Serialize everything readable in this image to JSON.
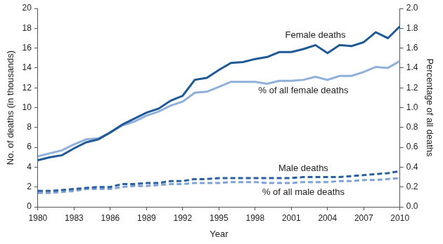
{
  "chart_data": {
    "type": "line",
    "x_label": "Year",
    "y_label": "No. of deaths (in thousands)",
    "y2_label": "Percentage of all deaths",
    "x": [
      1980,
      1981,
      1982,
      1983,
      1984,
      1985,
      1986,
      1987,
      1988,
      1989,
      1990,
      1991,
      1992,
      1993,
      1994,
      1995,
      1996,
      1997,
      1998,
      1999,
      2000,
      2001,
      2002,
      2003,
      2004,
      2005,
      2006,
      2007,
      2008,
      2009,
      2010
    ],
    "xlim": [
      1980,
      2010
    ],
    "xticks": [
      1980,
      1983,
      1986,
      1989,
      1992,
      1995,
      1998,
      2001,
      2004,
      2007,
      2010
    ],
    "ylim": [
      0,
      20
    ],
    "yticks": [
      0,
      2,
      4,
      6,
      8,
      10,
      12,
      14,
      16,
      18,
      20
    ],
    "y2lim": [
      0,
      2.0
    ],
    "y2ticks": [
      {
        "value": 0,
        "label": "0.0"
      },
      0.2,
      0.4,
      0.6,
      0.8,
      {
        "value": 1,
        "label": "1.0"
      },
      1.2,
      1.4,
      1.6,
      1.8,
      {
        "value": 2,
        "label": "2.0"
      }
    ],
    "grid": false,
    "series": [
      {
        "name": "Female deaths",
        "color": "#1f5a96",
        "line_style": "solid",
        "values": [
          4.7,
          5.0,
          5.2,
          5.9,
          6.5,
          6.8,
          7.5,
          8.3,
          8.9,
          9.5,
          9.9,
          10.7,
          11.2,
          12.8,
          13.0,
          13.8,
          14.5,
          14.6,
          14.9,
          15.1,
          15.6,
          15.6,
          15.9,
          16.3,
          15.5,
          16.3,
          16.2,
          16.6,
          17.6,
          17.0,
          18.2
        ]
      },
      {
        "name": "% of all female deaths",
        "color": "#8fb0dc",
        "line_style": "solid",
        "axis": "y2",
        "values": [
          0.51,
          0.54,
          0.57,
          0.63,
          0.68,
          0.69,
          0.75,
          0.82,
          0.86,
          0.92,
          0.96,
          1.02,
          1.06,
          1.15,
          1.16,
          1.21,
          1.26,
          1.26,
          1.26,
          1.24,
          1.27,
          1.27,
          1.28,
          1.31,
          1.28,
          1.32,
          1.32,
          1.36,
          1.41,
          1.4,
          1.47
        ]
      },
      {
        "name": "Male deaths",
        "color": "#2a5fa0",
        "line_style": "dashed",
        "values": [
          1.6,
          1.6,
          1.7,
          1.8,
          1.9,
          2.0,
          2.0,
          2.3,
          2.3,
          2.4,
          2.4,
          2.6,
          2.6,
          2.8,
          2.8,
          2.9,
          2.9,
          2.9,
          2.9,
          2.9,
          2.9,
          2.9,
          3.0,
          3.0,
          3.0,
          3.0,
          3.1,
          3.2,
          3.3,
          3.4,
          3.6
        ]
      },
      {
        "name": "% of all male deaths",
        "color": "#7fa3d6",
        "line_style": "dashed",
        "axis": "y2",
        "values": [
          0.14,
          0.14,
          0.15,
          0.16,
          0.18,
          0.18,
          0.18,
          0.2,
          0.21,
          0.21,
          0.22,
          0.23,
          0.23,
          0.24,
          0.24,
          0.24,
          0.25,
          0.25,
          0.25,
          0.24,
          0.24,
          0.24,
          0.25,
          0.25,
          0.25,
          0.26,
          0.26,
          0.27,
          0.27,
          0.28,
          0.29
        ]
      }
    ]
  }
}
